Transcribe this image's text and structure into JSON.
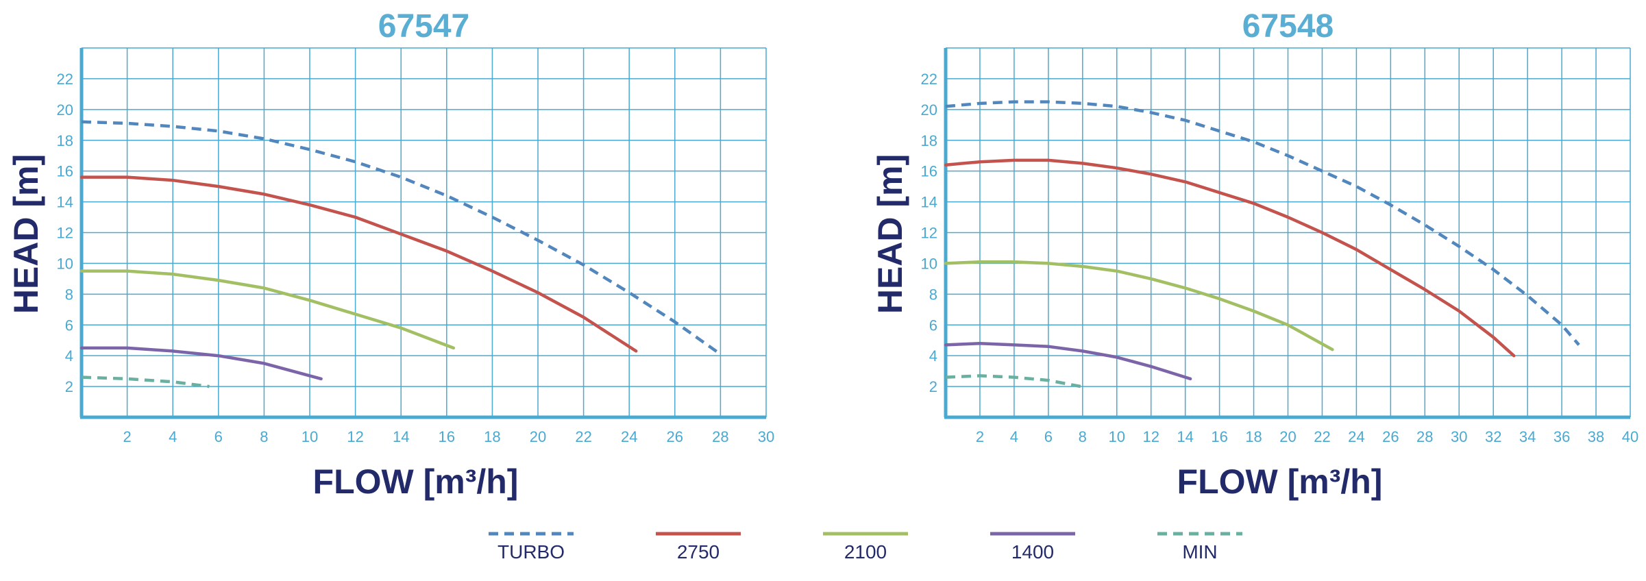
{
  "colors": {
    "grid": "#4aa9d0",
    "title": "#5aaed3",
    "axis_label": "#232a6a",
    "tick": "#4aa9d0",
    "legend_text": "#232a6a"
  },
  "legend": [
    {
      "label": "TURBO",
      "color": "#5287be",
      "dashed": true
    },
    {
      "label": "2750",
      "color": "#c3534c",
      "dashed": false
    },
    {
      "label": "2100",
      "color": "#a3bf63",
      "dashed": false
    },
    {
      "label": "1400",
      "color": "#7c64a8",
      "dashed": false
    },
    {
      "label": "MIN",
      "color": "#69b0a0",
      "dashed": true
    }
  ],
  "chart_data": [
    {
      "type": "line",
      "title": "67547",
      "xlabel": "FLOW [m³/h]",
      "ylabel": "HEAD [m]",
      "xlim": [
        0,
        30
      ],
      "ylim": [
        0,
        24
      ],
      "xticks": [
        2,
        4,
        6,
        8,
        10,
        12,
        14,
        16,
        18,
        20,
        22,
        24,
        26,
        28,
        30
      ],
      "yticks": [
        2,
        4,
        6,
        8,
        10,
        12,
        14,
        16,
        18,
        20,
        22
      ],
      "grid": true,
      "series": [
        {
          "name": "TURBO",
          "x": [
            0,
            2,
            4,
            6,
            8,
            10,
            12,
            14,
            16,
            18,
            20,
            22,
            24,
            26,
            27.9
          ],
          "y": [
            19.2,
            19.1,
            18.9,
            18.6,
            18.1,
            17.4,
            16.6,
            15.6,
            14.4,
            13.0,
            11.5,
            9.9,
            8.1,
            6.2,
            4.2
          ]
        },
        {
          "name": "2750",
          "x": [
            0,
            2,
            4,
            6,
            8,
            10,
            12,
            14,
            16,
            18,
            20,
            22,
            24.3
          ],
          "y": [
            15.6,
            15.6,
            15.4,
            15.0,
            14.5,
            13.8,
            13.0,
            11.9,
            10.8,
            9.5,
            8.1,
            6.5,
            4.3
          ]
        },
        {
          "name": "2100",
          "x": [
            0,
            2,
            4,
            6,
            8,
            10,
            12,
            14,
            16.3
          ],
          "y": [
            9.5,
            9.5,
            9.3,
            8.9,
            8.4,
            7.6,
            6.7,
            5.8,
            4.5
          ]
        },
        {
          "name": "1400",
          "x": [
            0,
            2,
            4,
            6,
            8,
            10.5
          ],
          "y": [
            4.5,
            4.5,
            4.3,
            4.0,
            3.5,
            2.5
          ]
        },
        {
          "name": "MIN",
          "x": [
            0,
            2,
            4,
            5.6
          ],
          "y": [
            2.6,
            2.5,
            2.3,
            2.0
          ]
        }
      ]
    },
    {
      "type": "line",
      "title": "67548",
      "xlabel": "FLOW [m³/h]",
      "ylabel": "HEAD [m]",
      "xlim": [
        0,
        40
      ],
      "ylim": [
        0,
        24
      ],
      "xticks": [
        2,
        4,
        6,
        8,
        10,
        12,
        14,
        16,
        18,
        20,
        22,
        24,
        26,
        28,
        30,
        32,
        34,
        36,
        38,
        40
      ],
      "yticks": [
        2,
        4,
        6,
        8,
        10,
        12,
        14,
        16,
        18,
        20,
        22
      ],
      "grid": true,
      "series": [
        {
          "name": "TURBO",
          "x": [
            0,
            2,
            4,
            6,
            8,
            10,
            12,
            14,
            16,
            18,
            20,
            22,
            24,
            26,
            28,
            30,
            32,
            34,
            36,
            37
          ],
          "y": [
            20.2,
            20.4,
            20.5,
            20.5,
            20.4,
            20.2,
            19.8,
            19.3,
            18.6,
            17.9,
            17.0,
            16.0,
            15.0,
            13.8,
            12.5,
            11.1,
            9.6,
            7.9,
            6.0,
            4.7
          ]
        },
        {
          "name": "2750",
          "x": [
            0,
            2,
            4,
            6,
            8,
            10,
            12,
            14,
            16,
            18,
            20,
            22,
            24,
            26,
            28,
            30,
            32,
            33.2
          ],
          "y": [
            16.4,
            16.6,
            16.7,
            16.7,
            16.5,
            16.2,
            15.8,
            15.3,
            14.6,
            13.9,
            13.0,
            12.0,
            10.9,
            9.6,
            8.3,
            6.9,
            5.2,
            4.0
          ]
        },
        {
          "name": "2100",
          "x": [
            0,
            2,
            4,
            6,
            8,
            10,
            12,
            14,
            16,
            18,
            20,
            22.6
          ],
          "y": [
            10.0,
            10.1,
            10.1,
            10.0,
            9.8,
            9.5,
            9.0,
            8.4,
            7.7,
            6.9,
            6.0,
            4.4
          ]
        },
        {
          "name": "1400",
          "x": [
            0,
            2,
            4,
            6,
            8,
            10,
            12,
            14.3
          ],
          "y": [
            4.7,
            4.8,
            4.7,
            4.6,
            4.3,
            3.9,
            3.3,
            2.5
          ]
        },
        {
          "name": "MIN",
          "x": [
            0,
            2,
            4,
            6,
            7.9
          ],
          "y": [
            2.6,
            2.7,
            2.6,
            2.4,
            2.0
          ]
        }
      ]
    }
  ]
}
